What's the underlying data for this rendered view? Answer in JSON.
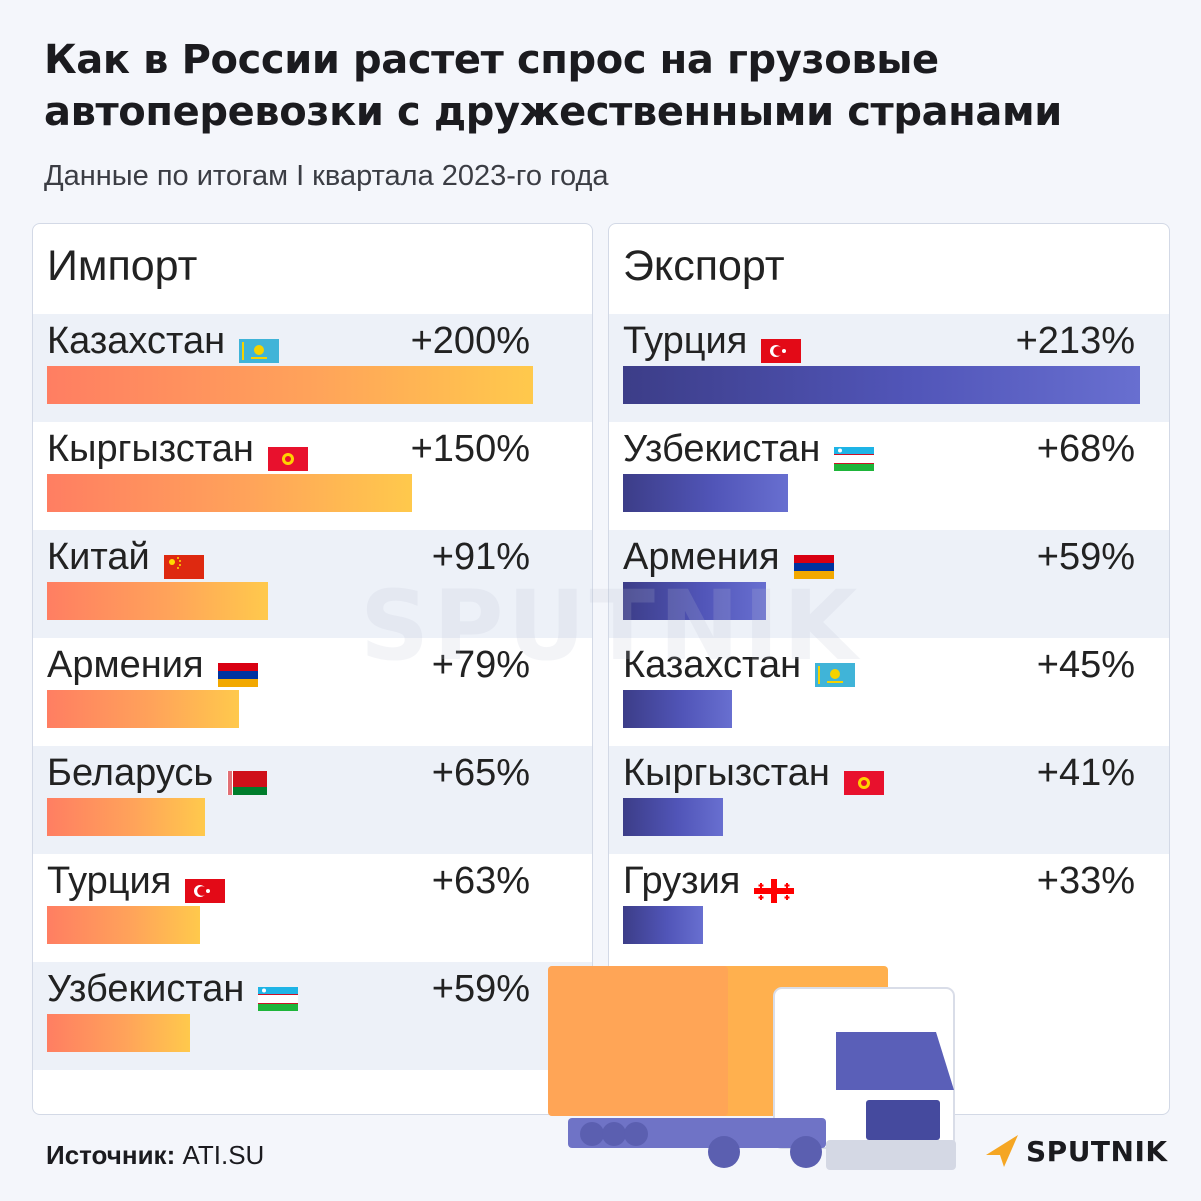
{
  "title": "Как в России растет спрос на грузовые автоперевозки с дружественными странами",
  "subtitle": "Данные по итогам I квартала 2023-го года",
  "source_label": "Источник:",
  "source_value": "ATI.SU",
  "logo_text": "SPUTNIK",
  "watermark": "SPUTNIK",
  "chart_data": [
    {
      "type": "bar",
      "title": "Импорт",
      "categories": [
        "Казахстан",
        "Кыргызстан",
        "Китай",
        "Армения",
        "Беларусь",
        "Турция",
        "Узбекистан"
      ],
      "values": [
        200,
        150,
        91,
        79,
        65,
        63,
        59
      ],
      "labels": [
        "+200%",
        "+150%",
        "+91%",
        "+79%",
        "+65%",
        "+63%",
        "+59%"
      ],
      "flags": [
        "kz-flag-icon",
        "kg-flag-icon",
        "cn-flag-icon",
        "am-flag-icon",
        "by-flag-icon",
        "tr-flag-icon",
        "uz-flag-icon"
      ],
      "color": "#ff8a5c",
      "color_end": "#ffc94c"
    },
    {
      "type": "bar",
      "title": "Экспорт",
      "categories": [
        "Турция",
        "Узбекистан",
        "Армения",
        "Казахстан",
        "Кыргызстан",
        "Грузия"
      ],
      "values": [
        213,
        68,
        59,
        45,
        41,
        33
      ],
      "labels": [
        "+213%",
        "+68%",
        "+59%",
        "+45%",
        "+41%",
        "+33%"
      ],
      "flags": [
        "tr-flag-icon",
        "uz-flag-icon",
        "am-flag-icon",
        "kz-flag-icon",
        "kg-flag-icon",
        "ge-flag-icon"
      ],
      "color": "#3c3d88",
      "color_end": "#686fd0"
    }
  ]
}
